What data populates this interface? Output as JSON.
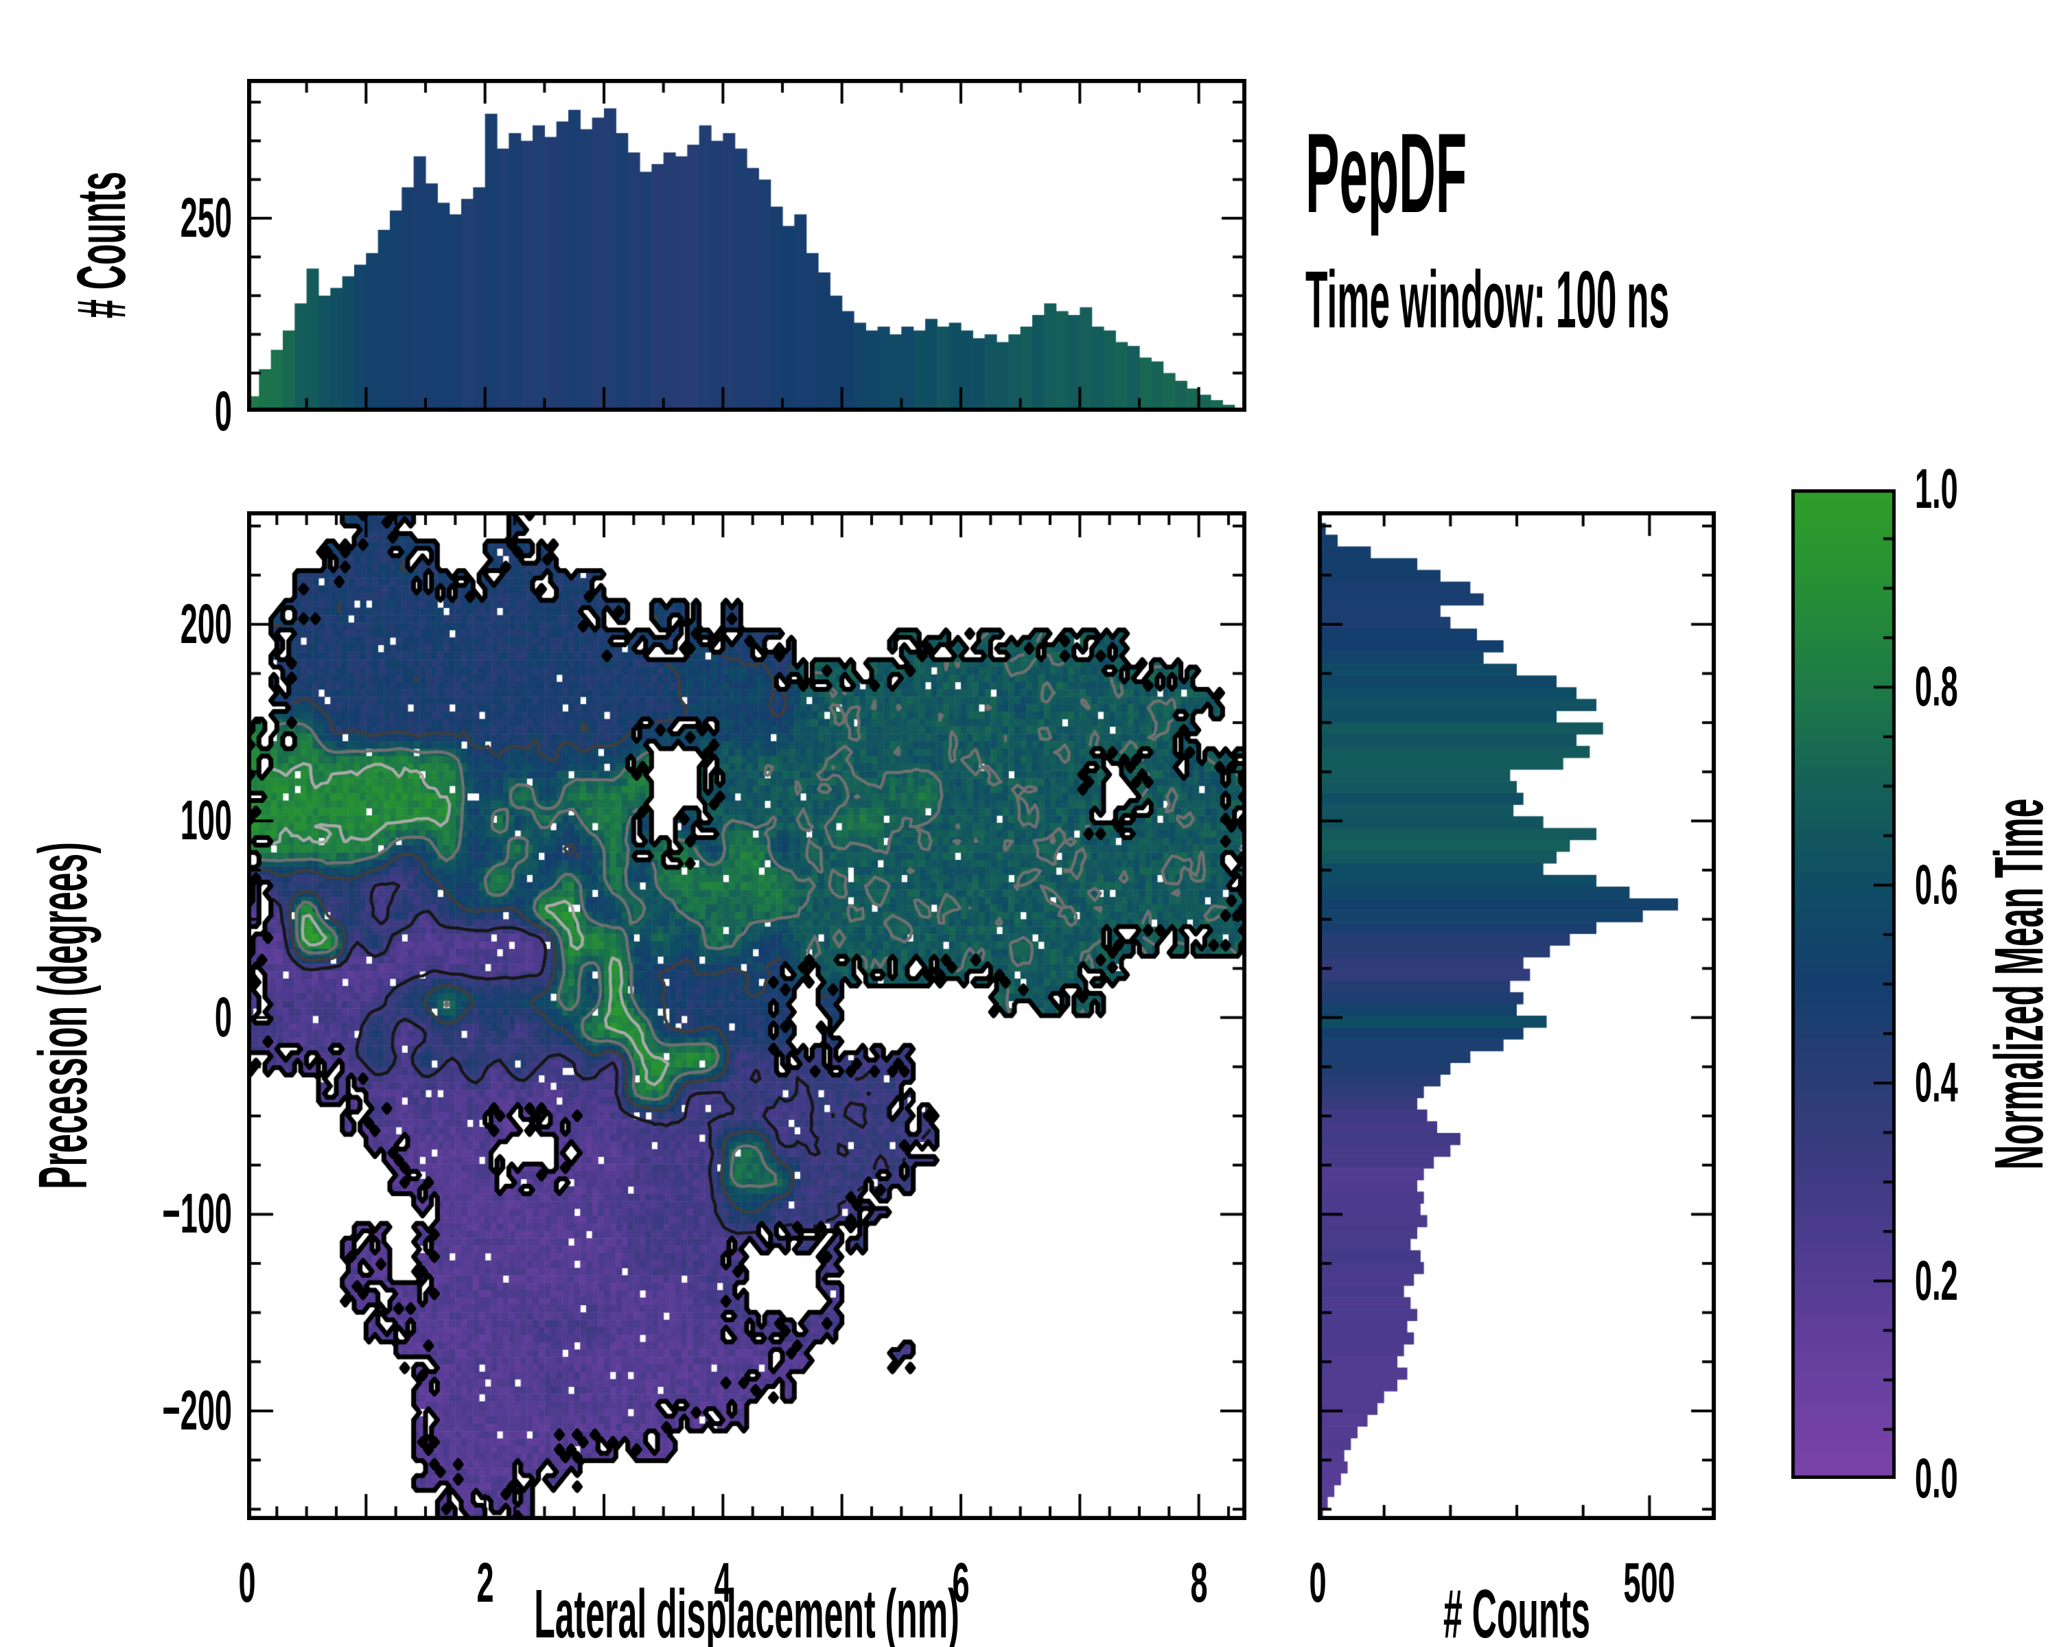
{
  "title": {
    "text": "PepDF",
    "subtitle": "Time window: 100 ns"
  },
  "chart_data": [
    {
      "type": "bar",
      "role": "top_histogram",
      "ylabel": "# Counts",
      "x_range": [
        0,
        8.4
      ],
      "y_range": [
        0,
        430
      ],
      "bin_width": 0.1,
      "x_tick_minor": 0.5,
      "x_tick_major": 1,
      "y_tick_minor": 50,
      "y_ticks": [
        {
          "v": 0,
          "label": "0"
        },
        {
          "v": 250,
          "label": "250"
        }
      ],
      "values": [
        20,
        55,
        80,
        105,
        140,
        185,
        150,
        160,
        175,
        190,
        205,
        235,
        260,
        290,
        330,
        295,
        270,
        255,
        275,
        290,
        385,
        340,
        360,
        350,
        370,
        355,
        375,
        390,
        365,
        380,
        392,
        360,
        335,
        310,
        320,
        335,
        330,
        345,
        370,
        350,
        360,
        340,
        315,
        300,
        265,
        240,
        255,
        205,
        180,
        150,
        130,
        115,
        105,
        110,
        100,
        110,
        105,
        120,
        110,
        115,
        105,
        95,
        100,
        90,
        100,
        110,
        125,
        140,
        130,
        125,
        135,
        110,
        105,
        90,
        85,
        70,
        65,
        50,
        40,
        30,
        22,
        15,
        9,
        5
      ],
      "color_stops": [
        [
          0,
          0.8
        ],
        [
          0.3,
          0.74
        ],
        [
          0.6,
          0.66
        ],
        [
          0.9,
          0.56
        ],
        [
          1.2,
          0.5
        ],
        [
          2.0,
          0.47
        ],
        [
          3.0,
          0.46
        ],
        [
          3.5,
          0.43
        ],
        [
          4.1,
          0.45
        ],
        [
          4.8,
          0.5
        ],
        [
          5.3,
          0.55
        ],
        [
          5.9,
          0.62
        ],
        [
          6.5,
          0.66
        ],
        [
          7.2,
          0.69
        ],
        [
          8.0,
          0.72
        ],
        [
          8.4,
          0.75
        ]
      ]
    },
    {
      "type": "heatmap",
      "role": "main_panel",
      "xlabel": "Lateral displacement (nm)",
      "ylabel": "Precession (degrees)",
      "value_label": "Normalized Mean Time",
      "x_range": [
        0,
        8.4
      ],
      "y_range": [
        -255.5,
        257.5
      ],
      "x_ticks": [
        {
          "v": 0,
          "label": "0"
        },
        {
          "v": 2,
          "label": "2"
        },
        {
          "v": 4,
          "label": "4"
        },
        {
          "v": 6,
          "label": "6"
        },
        {
          "v": 8,
          "label": "8"
        }
      ],
      "y_ticks": [
        {
          "v": 200,
          "label": "200"
        },
        {
          "v": 100,
          "label": "100"
        },
        {
          "v": 0,
          "label": "0"
        },
        {
          "v": -100,
          "label": "−100"
        },
        {
          "v": -200,
          "label": "−200"
        }
      ],
      "x_tick_minor": 0.25,
      "x_tick_major": 1,
      "y_tick_minor": 25,
      "y_tick_major": 100,
      "grid_cols": 42,
      "grid_rows": 34,
      "grid_legend": "hex char = normalized mean time *15, '.' = no data; rows top(+257.5deg) to bottom(-255.5deg), cols 0 to 8.4nm",
      "grid": [
        "....777....7..............................",
        "...77777..777.............................",
        "..7777777777777...........................",
        ".777777777777777.77.7.....................",
        ".7777777777777777778777....aaaaaaaaa9.....",
        ".777777777777777778888 7aaaaaaaaaaaaaaaaa..",
        ".7777777777777777788887 9aaaaaaaa9aaaaaaaa.",
        "ccc777777777777778888 88aaaaaaaaaaaaaaaa9..",
        "dcdccddcc8888888c..aaaaaaaaa9aaaaaaaaaa9aa",
        "ddddddddd88c8cccc..a9aaaaaabc9aaaaaa.aaa9a",
        "edddddddd8c8c8cc8.8aaaaaaccaaaaaaaaaaaaaaa",
        "cccccc78c78c878c8cc8cc8aaaaaaaaaaaaaaaaaaa",
        "4747744788e88c8c8ccccccaaaaaaaaaaaaaaaaaaa",
        "34f474747878ee88c8bbbbbaaaaaaaaaaaaaaaaaaa",
        "33ff473333333dec8b8bb88aaaaaaaaaaaaaaaaaaa",
        "3333333444444c8e8778787aaaaaaaaaaaaaa.....",
        "44444478c8788c8e8777777.7......aaaaa......",
        "44344734747478cee777777.7.................",
        "4434474747474473ddee55555555..............",
        "...3343434343444dd4455555555..............",
        "....3434343334344555554555555.............",
        ".....333333..3334444bb4555555.............",
        "......33333333334444bbb55555..............",
        ".......333333334444488555 55...............",
        "....33.3333333334444445555................",
        "....33.33333333344444...4.................",
        "....33333333333333344...4.................",
        ".....33333334443333344444.................",
        "......333333333333333333...4..............",
        ".......3333344333333333...................",
        ".......33333333333333.....................",
        ".......33333333333........................",
        ".......3333333............................",
        "........3333.............................."
      ],
      "contour_levels": [
        0.32,
        0.5,
        0.68,
        0.84,
        0.94
      ],
      "contour_colors": [
        "#161616",
        "#3e3e3e",
        "#707070",
        "#a9a9a9",
        "#f2f2f2"
      ],
      "boundary_color": "#000000"
    },
    {
      "type": "bar",
      "role": "right_histogram",
      "orientation": "horizontal",
      "xlabel": "# Counts",
      "x_range": [
        0,
        600
      ],
      "bin_height_deg": 6,
      "x_ticks": [
        {
          "v": 0,
          "label": "0"
        },
        {
          "v": 500,
          "label": "500"
        }
      ],
      "x_tick_minor": 100,
      "values": [
        5,
        12,
        30,
        80,
        150,
        185,
        230,
        250,
        185,
        200,
        240,
        280,
        250,
        300,
        360,
        390,
        420,
        360,
        430,
        390,
        410,
        370,
        290,
        300,
        310,
        295,
        340,
        420,
        380,
        360,
        340,
        420,
        470,
        543,
        490,
        420,
        380,
        350,
        310,
        320,
        290,
        310,
        300,
        345,
        310,
        280,
        230,
        200,
        185,
        160,
        150,
        165,
        180,
        215,
        200,
        175,
        160,
        150,
        160,
        155,
        165,
        150,
        140,
        155,
        160,
        145,
        130,
        140,
        150,
        135,
        145,
        130,
        120,
        135,
        120,
        100,
        90,
        75,
        60,
        50,
        40,
        45,
        35,
        25,
        15,
        8
      ],
      "values_note": "86 bins from +255 deg (first) down to -255 deg (last)",
      "color_stops_by_deg": [
        [
          -258,
          0.18
        ],
        [
          -240,
          0.2
        ],
        [
          -225,
          0.21
        ],
        [
          -210,
          0.22
        ],
        [
          -195,
          0.22
        ],
        [
          -180,
          0.23
        ],
        [
          -165,
          0.24
        ],
        [
          -150,
          0.24
        ],
        [
          -135,
          0.25
        ],
        [
          -120,
          0.27
        ],
        [
          -105,
          0.26
        ],
        [
          -90,
          0.24
        ],
        [
          -75,
          0.24
        ],
        [
          -62,
          0.27
        ],
        [
          -52,
          0.31
        ],
        [
          -40,
          0.37
        ],
        [
          -30,
          0.44
        ],
        [
          -18,
          0.46
        ],
        [
          -8,
          0.52
        ],
        [
          -2,
          0.6
        ],
        [
          4,
          0.52
        ],
        [
          12,
          0.44
        ],
        [
          22,
          0.34
        ],
        [
          30,
          0.38
        ],
        [
          40,
          0.45
        ],
        [
          50,
          0.5
        ],
        [
          60,
          0.55
        ],
        [
          70,
          0.58
        ],
        [
          80,
          0.63
        ],
        [
          90,
          0.7
        ],
        [
          100,
          0.64
        ],
        [
          112,
          0.62
        ],
        [
          120,
          0.68
        ],
        [
          135,
          0.66
        ],
        [
          150,
          0.63
        ],
        [
          170,
          0.58
        ],
        [
          185,
          0.52
        ],
        [
          205,
          0.47
        ],
        [
          230,
          0.48
        ],
        [
          258,
          0.5
        ]
      ]
    },
    {
      "type": "colorbar",
      "label": "Normalized Mean Time",
      "range": [
        0,
        1
      ],
      "ticks": [
        {
          "v": 0,
          "label": "0.0"
        },
        {
          "v": 0.2,
          "label": "0.2"
        },
        {
          "v": 0.4,
          "label": "0.4"
        },
        {
          "v": 0.6,
          "label": "0.6"
        },
        {
          "v": 0.8,
          "label": "0.8"
        },
        {
          "v": 1,
          "label": "1.0"
        }
      ],
      "tick_minor": 0.05,
      "colormap_stops": [
        [
          0,
          "#7b42aa"
        ],
        [
          0.1,
          "#6940a1"
        ],
        [
          0.2,
          "#553c93"
        ],
        [
          0.3,
          "#403a84"
        ],
        [
          0.4,
          "#2b3d75"
        ],
        [
          0.5,
          "#143e6d"
        ],
        [
          0.6,
          "#0f4d64"
        ],
        [
          0.7,
          "#166058"
        ],
        [
          0.8,
          "#1e7a47"
        ],
        [
          0.9,
          "#268f35"
        ],
        [
          1,
          "#2f9e28"
        ]
      ]
    }
  ]
}
